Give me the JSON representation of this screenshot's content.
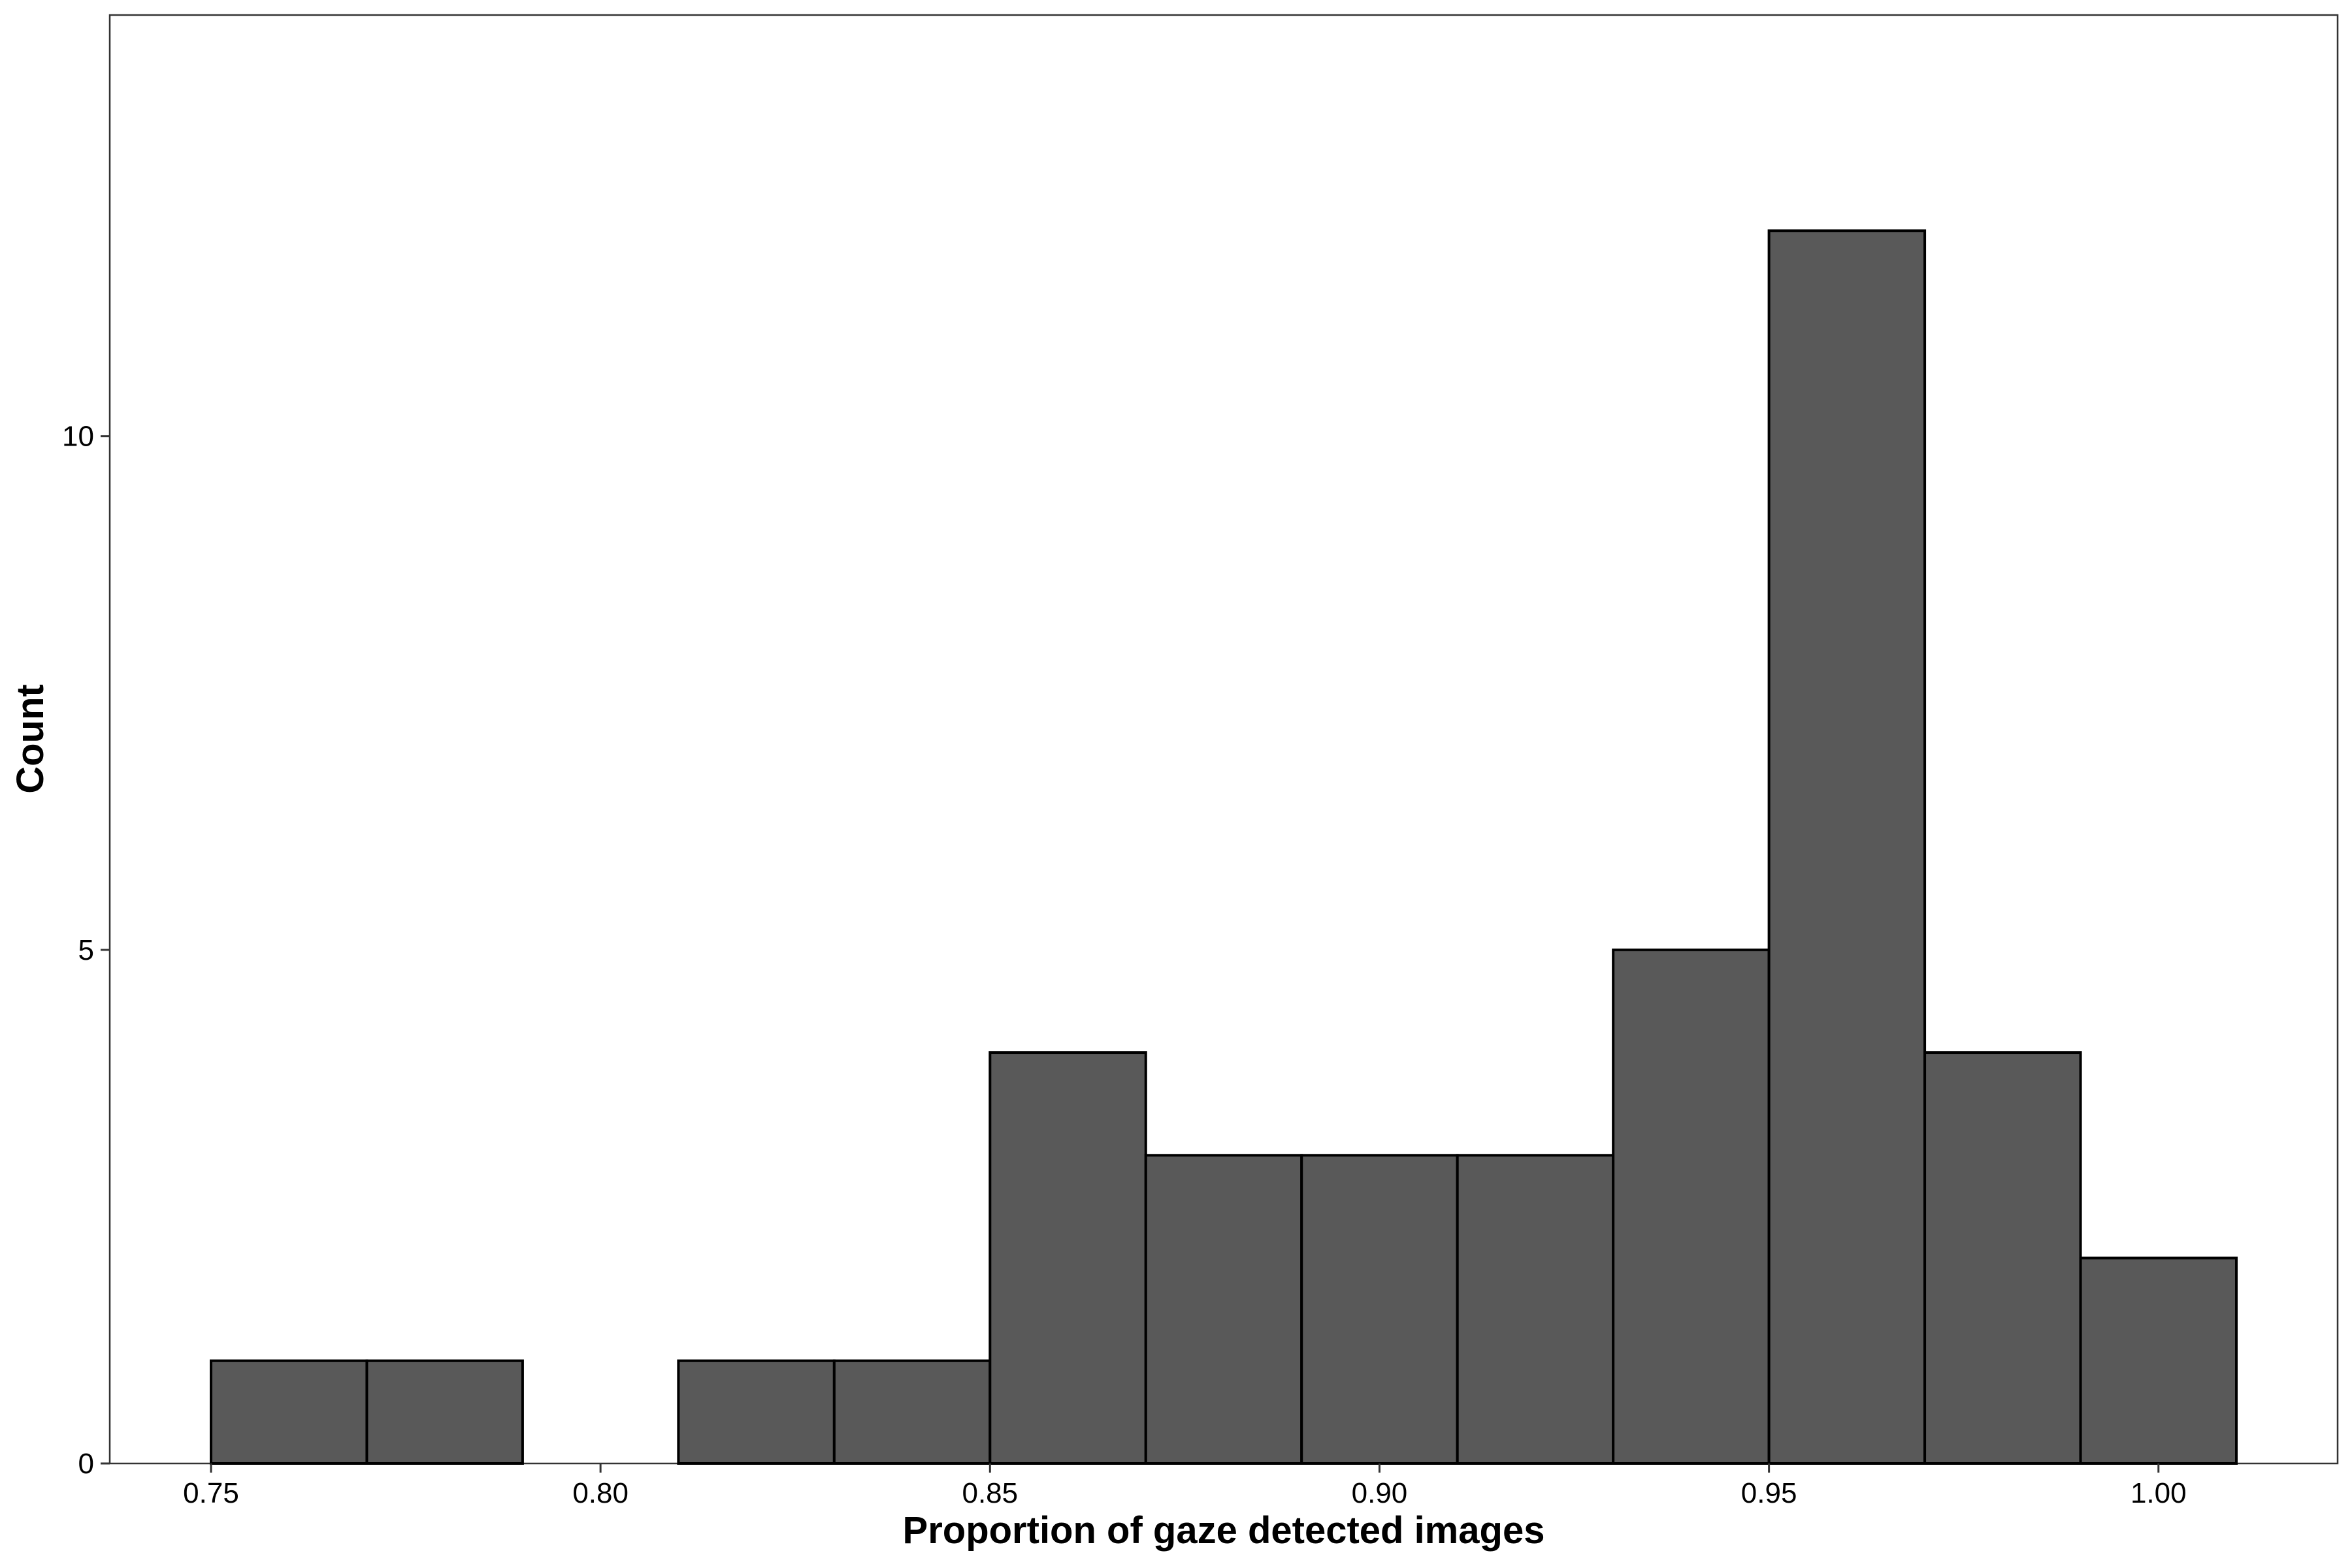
{
  "chart_data": {
    "type": "bar",
    "subtype": "histogram",
    "title": "",
    "xlabel": "Proportion of gaze detected images",
    "ylabel": "Count",
    "bin_width": 0.02,
    "bins": [
      {
        "x0": 0.75,
        "x1": 0.77,
        "count": 1
      },
      {
        "x0": 0.77,
        "x1": 0.79,
        "count": 1
      },
      {
        "x0": 0.79,
        "x1": 0.81,
        "count": 0
      },
      {
        "x0": 0.81,
        "x1": 0.83,
        "count": 1
      },
      {
        "x0": 0.83,
        "x1": 0.85,
        "count": 1
      },
      {
        "x0": 0.85,
        "x1": 0.87,
        "count": 4
      },
      {
        "x0": 0.87,
        "x1": 0.89,
        "count": 3
      },
      {
        "x0": 0.89,
        "x1": 0.91,
        "count": 3
      },
      {
        "x0": 0.91,
        "x1": 0.93,
        "count": 3
      },
      {
        "x0": 0.93,
        "x1": 0.95,
        "count": 5
      },
      {
        "x0": 0.95,
        "x1": 0.97,
        "count": 12
      },
      {
        "x0": 0.97,
        "x1": 0.99,
        "count": 4
      },
      {
        "x0": 0.99,
        "x1": 1.01,
        "count": 2
      }
    ],
    "xlim": [
      0.737,
      1.023
    ],
    "ylim": [
      0,
      14.1
    ],
    "x_ticks": [
      0.75,
      0.8,
      0.85,
      0.9,
      0.95,
      1.0
    ],
    "x_tick_labels": [
      "0.75",
      "0.80",
      "0.85",
      "0.90",
      "0.95",
      "1.00"
    ],
    "y_ticks": [
      0,
      5,
      10
    ],
    "y_tick_labels": [
      "0",
      "5",
      "10"
    ],
    "grid": false,
    "legend": "none",
    "colors": {
      "bar_fill": "#595959",
      "bar_edge": "#000000",
      "panel_border": "#333333"
    }
  }
}
